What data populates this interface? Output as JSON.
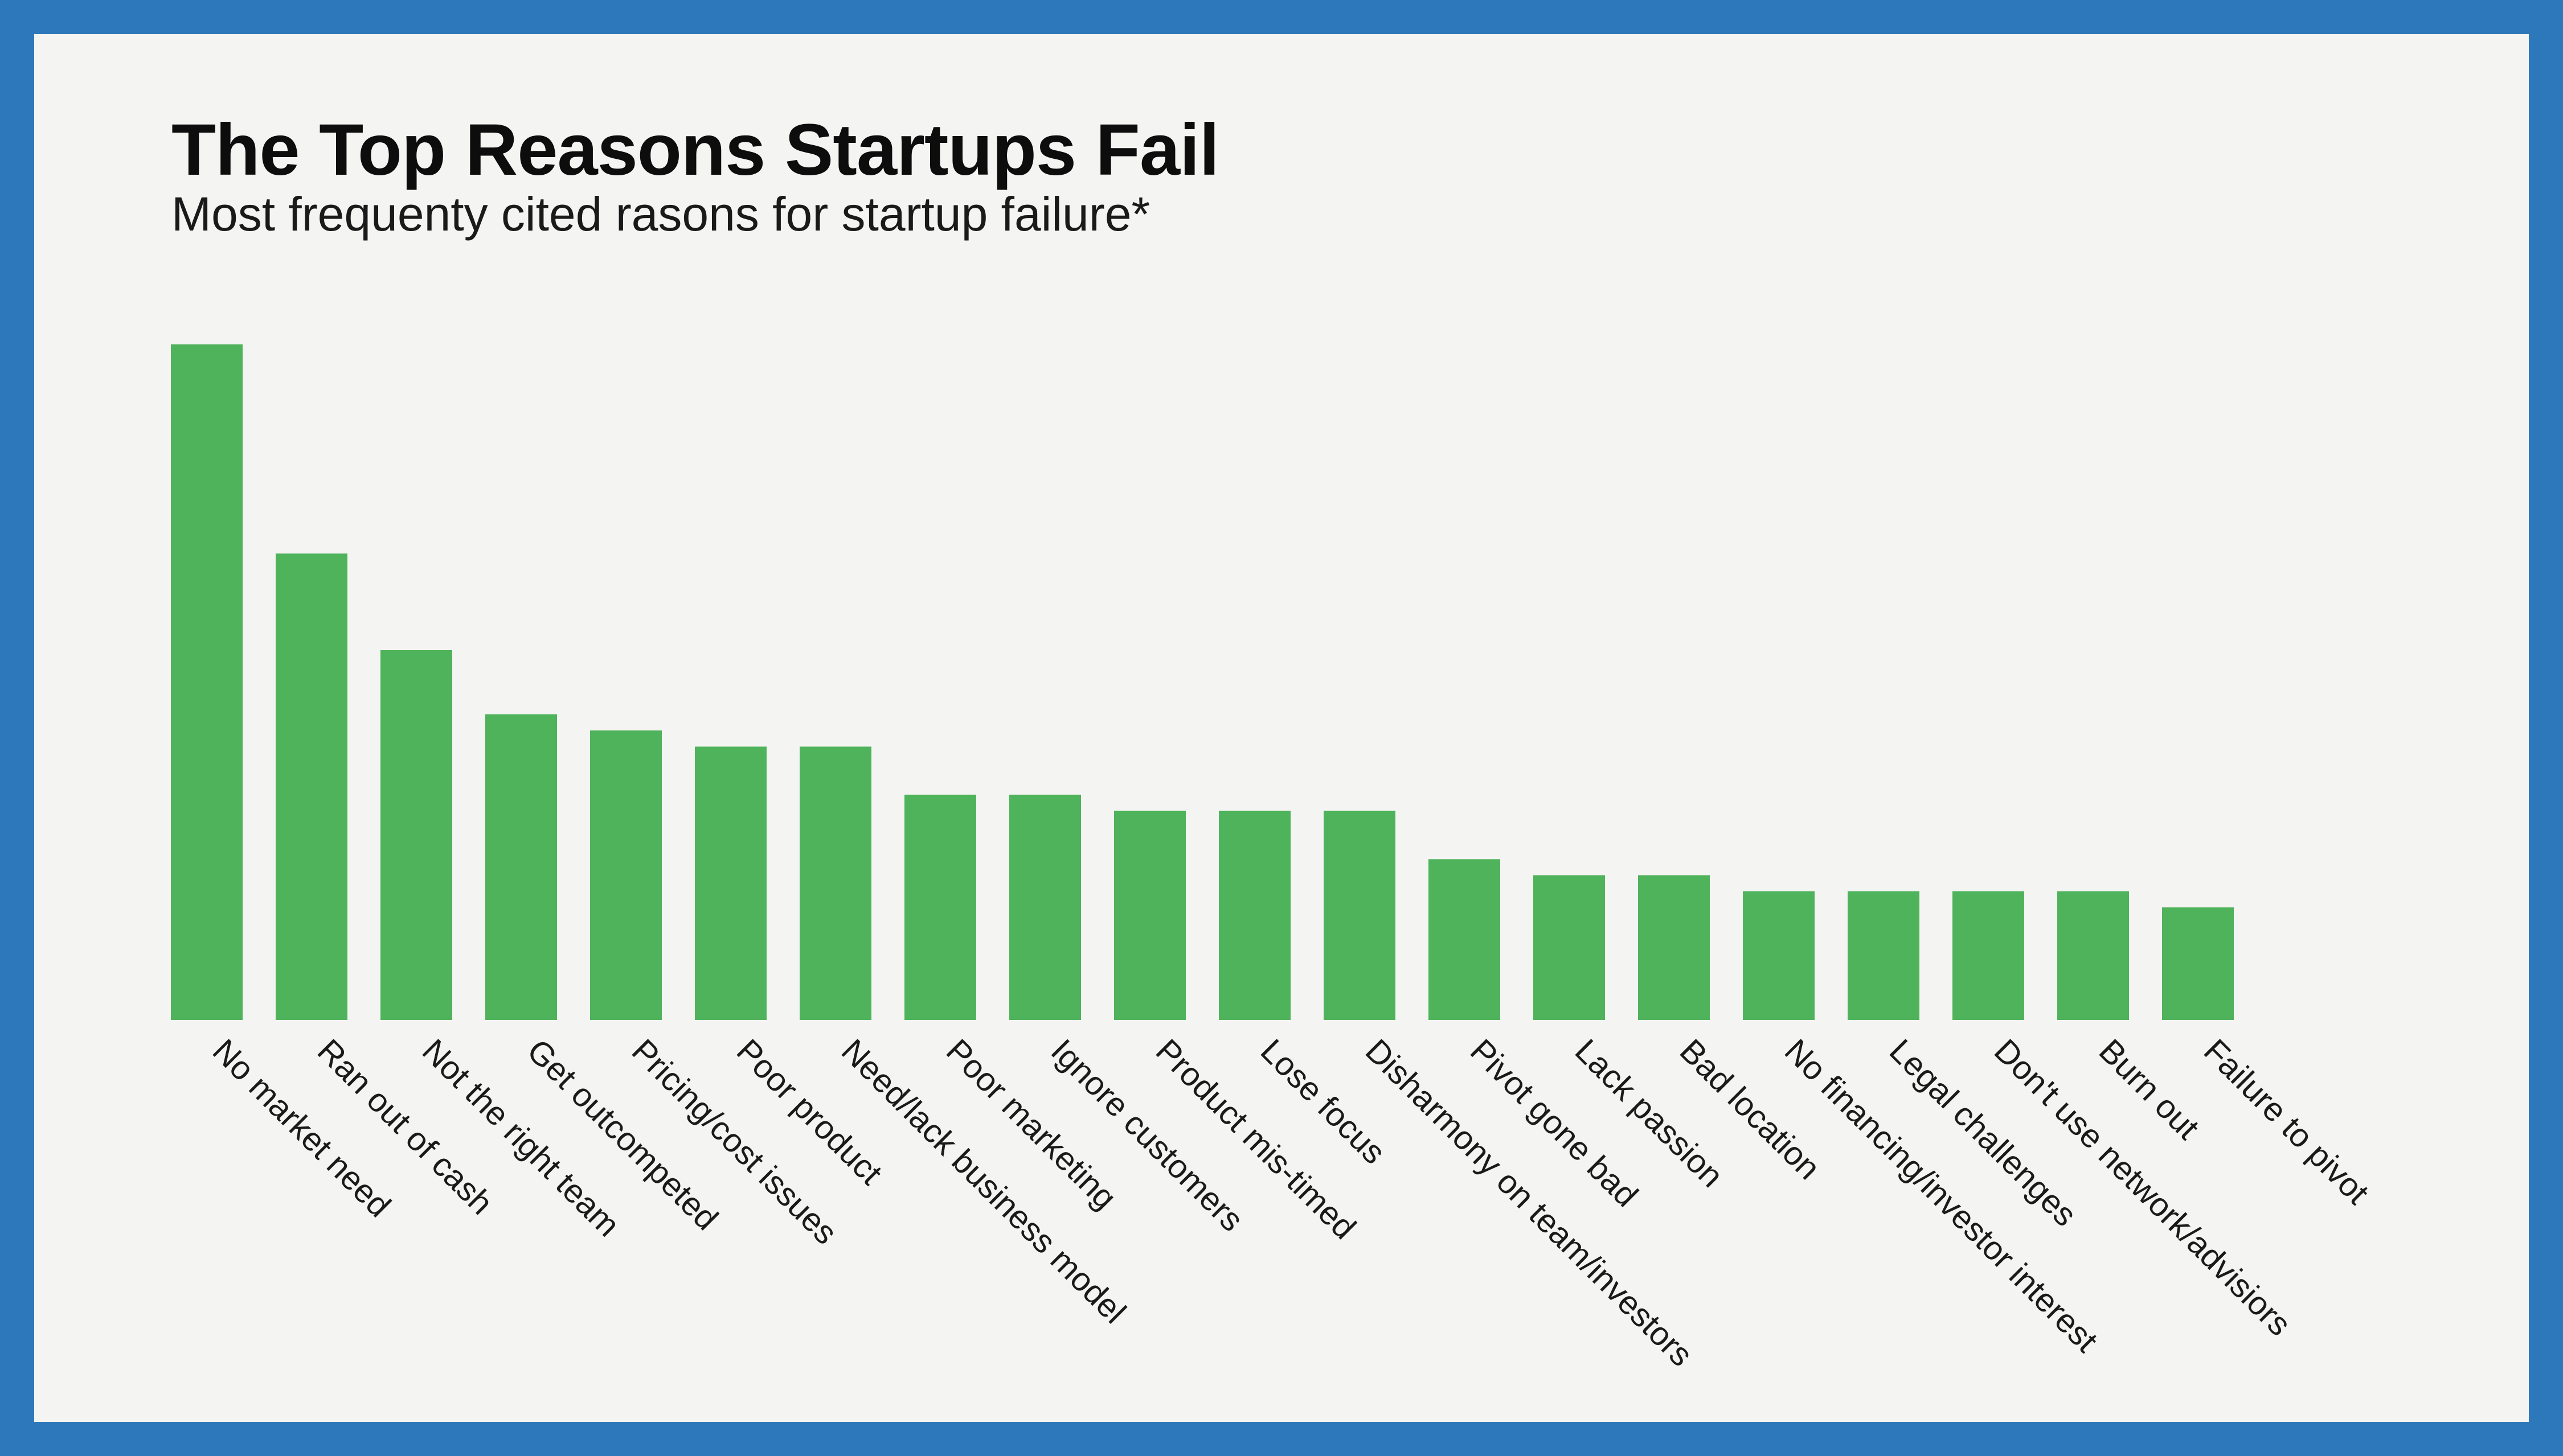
{
  "colors": {
    "frame": "#2d77bb",
    "background": "#f4f4f2",
    "bar": "#4fb35c"
  },
  "chart_data": {
    "type": "bar",
    "title": "The Top Reasons Startups Fail",
    "subtitle": "Most frequenty cited rasons for startup failure*",
    "xlabel": "",
    "ylabel": "",
    "grid": false,
    "legend": "none",
    "ylim": [
      0,
      45
    ],
    "categories": [
      "No market need",
      "Ran out of cash",
      "Not the right team",
      "Get outcompeted",
      "Pricing/cost issues",
      "Poor product",
      "Need/lack business model",
      "Poor marketing",
      "Ignore customers",
      "Product mis-timed",
      "Lose focus",
      "Disharmony on team/investors",
      "Pivot gone bad",
      "Lack passion",
      "Bad location",
      "No financing/investor interest",
      "Legal challenges",
      "Don't use network/advisiors",
      "Burn out",
      "Failure to pivot"
    ],
    "values": [
      42,
      29,
      23,
      19,
      18,
      17,
      17,
      14,
      14,
      13,
      13,
      13,
      10,
      9,
      9,
      8,
      8,
      8,
      8,
      7
    ]
  }
}
